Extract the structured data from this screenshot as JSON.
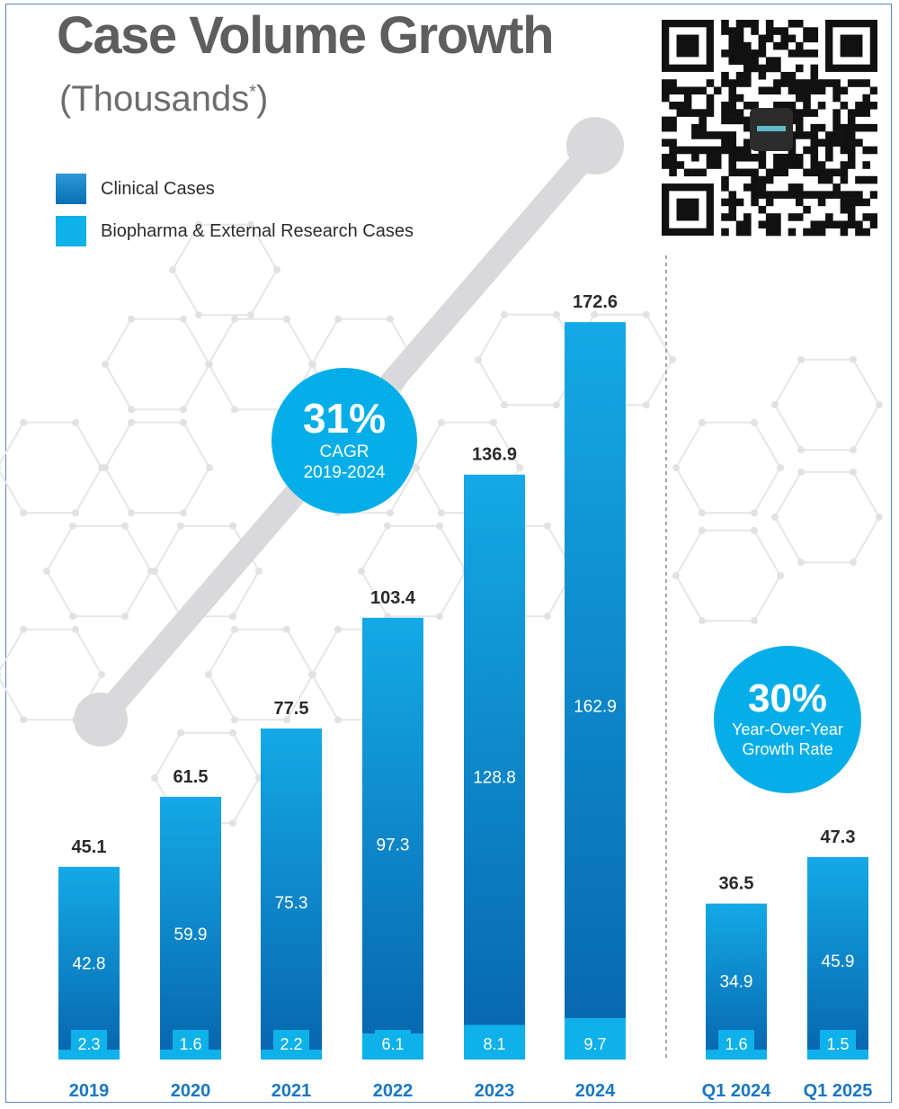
{
  "chart_data": {
    "type": "bar",
    "stacked": true,
    "title": "Case Volume Growth",
    "subtitle": "(Thousands",
    "subtitle_mark": "*",
    "subtitle_close": ")",
    "categories": [
      "2019",
      "2020",
      "2021",
      "2022",
      "2023",
      "2024",
      "Q1 2024",
      "Q1 2025"
    ],
    "totals": [
      "45.1",
      "61.5",
      "77.5",
      "103.4",
      "136.9",
      "172.6",
      "36.5",
      "47.3"
    ],
    "series": [
      {
        "name": "Clinical Cases",
        "color": "#0a6fb4",
        "values": [
          42.8,
          59.9,
          75.3,
          97.3,
          128.8,
          162.9,
          34.9,
          45.9
        ],
        "labels": [
          "42.8",
          "59.9",
          "75.3",
          "97.3",
          "128.8",
          "162.9",
          "34.9",
          "45.9"
        ]
      },
      {
        "name": "Biopharma & External Research Cases",
        "color": "#0eb1ea",
        "values": [
          2.3,
          1.6,
          2.2,
          6.1,
          8.1,
          9.7,
          1.6,
          1.5
        ],
        "labels": [
          "2.3",
          "1.6",
          "2.2",
          "6.1",
          "8.1",
          "9.7",
          "1.6",
          "1.5"
        ]
      }
    ],
    "legend_position": "top-left",
    "grid": false,
    "annotations": [
      {
        "big": "31%",
        "line1": "CAGR",
        "line2": "2019-2024"
      },
      {
        "big": "30%",
        "line1": "Year-Over-Year",
        "line2": "Growth Rate"
      }
    ]
  }
}
